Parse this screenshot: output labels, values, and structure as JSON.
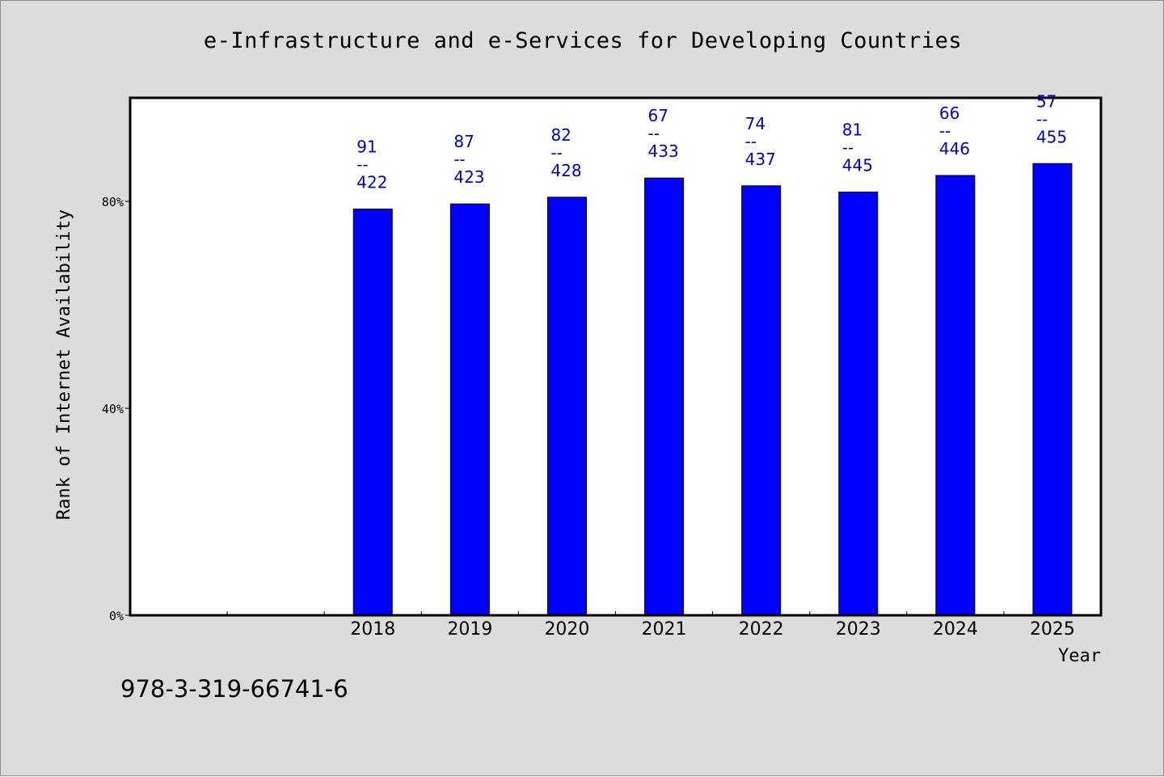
{
  "chart_data": {
    "type": "bar",
    "title": "e-Infrastructure and e-Services for Developing Countries",
    "xlabel": "Year",
    "ylabel": "Rank of Internet Availability",
    "categories": [
      "",
      "",
      "2018",
      "2019",
      "2020",
      "2021",
      "2022",
      "2023",
      "2024",
      "2025"
    ],
    "values": [
      null,
      null,
      78.5,
      79.5,
      80.8,
      84.5,
      83.0,
      81.8,
      85.0,
      87.3
    ],
    "data_labels": [
      null,
      null,
      [
        "91",
        "--",
        "422"
      ],
      [
        "87",
        "--",
        "423"
      ],
      [
        "82",
        "--",
        "428"
      ],
      [
        "67",
        "--",
        "433"
      ],
      [
        "74",
        "--",
        "437"
      ],
      [
        "81",
        "--",
        "445"
      ],
      [
        "66",
        "--",
        "446"
      ],
      [
        "57",
        "--",
        "455"
      ]
    ],
    "yticks": [
      "0%",
      "40%",
      "80%"
    ],
    "ytick_values": [
      0,
      40,
      80
    ],
    "ylim": [
      0,
      100
    ],
    "grid": false,
    "bar_color": "#0000ff",
    "label_color": "#0000cc"
  },
  "footer": {
    "code": "978-3-319-66741-6"
  }
}
